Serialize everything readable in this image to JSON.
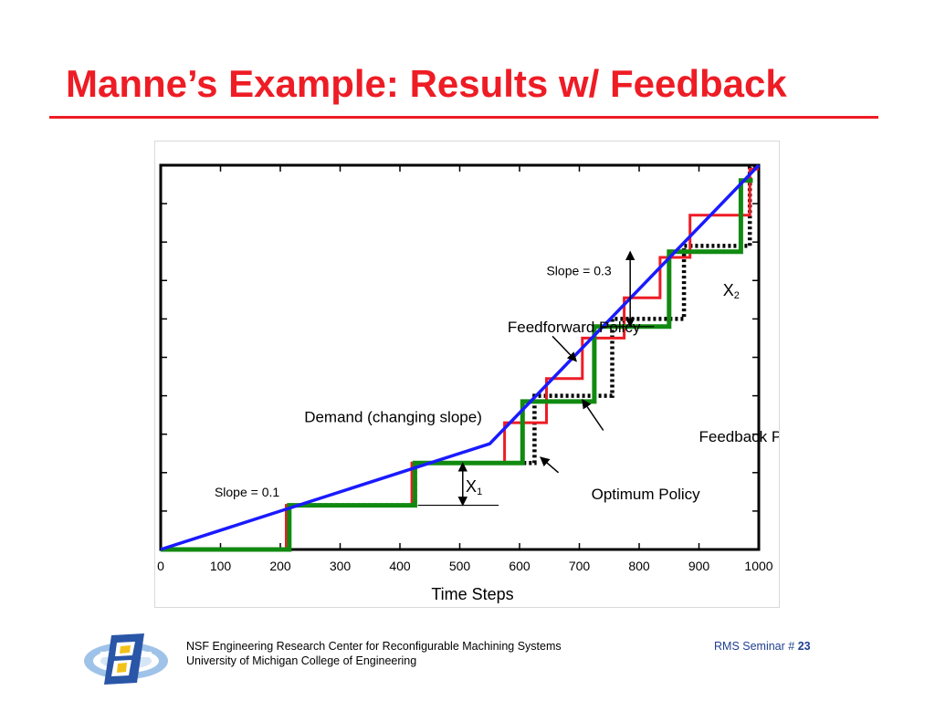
{
  "slide": {
    "title": "Manne’s Example: Results w/ Feedback"
  },
  "footer": {
    "org_line1": "NSF Engineering Research Center for Reconfigurable Machining Systems",
    "org_line2": "University of Michigan College of Engineering",
    "seminar_label": "RMS Seminar # ",
    "slide_number": "23"
  },
  "colors": {
    "title": "#ee1c25",
    "demand": "#1a1aff",
    "feedforward": "#ee1c25",
    "feedback": "#118a11",
    "optimum": "#000000"
  },
  "chart_data": {
    "type": "line",
    "title": "",
    "xlabel": "Time Steps",
    "ylabel": "",
    "xlim": [
      0,
      1000
    ],
    "ylim": [
      0,
      200
    ],
    "x_ticks": [
      "0",
      "100",
      "200",
      "300",
      "400",
      "500",
      "600",
      "700",
      "800",
      "900",
      "1000"
    ],
    "y_ticks": [
      "0",
      "20",
      "40",
      "60",
      "80",
      "100",
      "120",
      "140",
      "160",
      "180",
      "200"
    ],
    "grid": false,
    "series": [
      {
        "name": "Demand (changing slope)",
        "style": "solid",
        "x": [
          0,
          550,
          1000
        ],
        "y": [
          0,
          55,
          200
        ]
      },
      {
        "name": "Feedforward Policy",
        "style": "solid",
        "x": [
          0,
          210,
          210,
          420,
          420,
          575,
          575,
          645,
          645,
          705,
          705,
          775,
          775,
          835,
          835,
          885,
          885,
          935,
          935,
          985,
          985,
          1000
        ],
        "y": [
          0,
          0,
          23,
          23,
          45,
          45,
          66,
          66,
          89,
          89,
          110,
          110,
          131,
          131,
          152,
          152,
          174,
          174,
          174,
          174,
          198,
          198
        ]
      },
      {
        "name": "Feedback Policy",
        "style": "solid",
        "x": [
          0,
          215,
          215,
          425,
          425,
          605,
          605,
          725,
          725,
          850,
          850,
          970,
          970,
          990
        ],
        "y": [
          0,
          0,
          23,
          23,
          45,
          45,
          77,
          77,
          116,
          116,
          155,
          155,
          192,
          192
        ]
      },
      {
        "name": "Optimum Policy",
        "style": "dotted",
        "x": [
          0,
          215,
          215,
          425,
          425,
          625,
          625,
          755,
          755,
          875,
          875,
          985,
          985,
          1000
        ],
        "y": [
          0,
          0,
          23,
          23,
          45,
          45,
          80,
          80,
          120,
          120,
          158,
          158,
          199,
          199
        ]
      }
    ],
    "annotations": [
      {
        "text": "Slope = 0.1",
        "x": 90,
        "y": 30
      },
      {
        "text": "Slope = 0.3",
        "x": 645,
        "y": 145
      },
      {
        "text": "Demand (changing slope)",
        "x": 240,
        "y": 69
      },
      {
        "text": "Feedforward Policy",
        "x": 580,
        "y": 116
      },
      {
        "text": "Feedback Policy",
        "x": 900,
        "y": 59
      },
      {
        "text": "Optimum Policy",
        "x": 720,
        "y": 29
      },
      {
        "text": "X",
        "sub": "1",
        "x": 510,
        "y": 33
      },
      {
        "text": "X",
        "sub": "2",
        "x": 940,
        "y": 135
      }
    ],
    "dimensions": [
      {
        "label": "x1",
        "x": 505,
        "y_from": 23,
        "y_to": 45,
        "ext_from": 430,
        "ext_to": 565
      },
      {
        "label": "x2",
        "x": 785,
        "y_from": 116,
        "y_to": 155,
        "ext_from": 735,
        "ext_to": 825
      }
    ],
    "arrows": [
      {
        "label": "feedforward-arrow",
        "from": [
          655,
          111
        ],
        "to": [
          695,
          98
        ]
      },
      {
        "label": "feedback-arrow",
        "from": [
          740,
          62
        ],
        "to": [
          705,
          78
        ]
      },
      {
        "label": "optimum-arrow",
        "from": [
          665,
          40
        ],
        "to": [
          635,
          48
        ]
      }
    ]
  }
}
